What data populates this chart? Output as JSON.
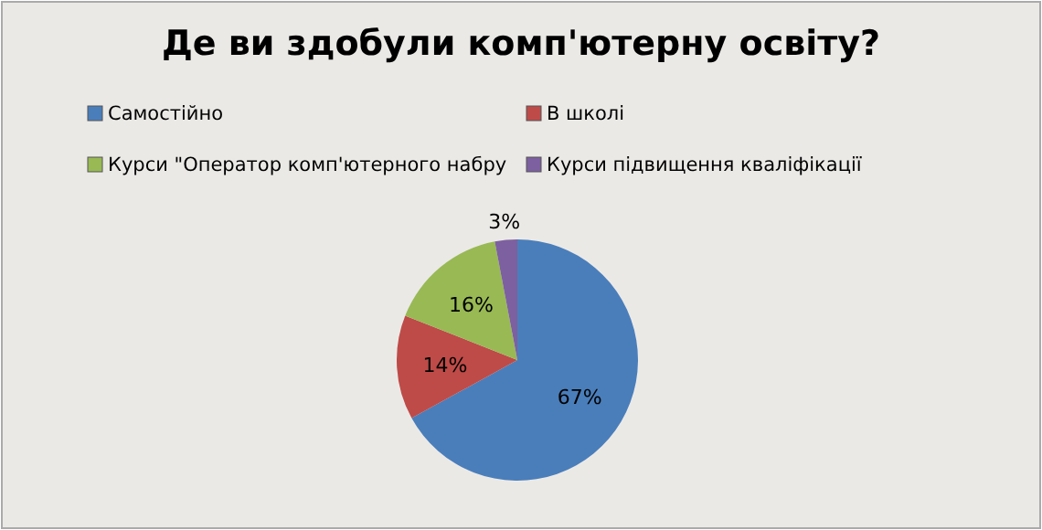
{
  "chart_data": {
    "type": "pie",
    "title": "Де ви здобули комп'ютерну освіту?",
    "categories": [
      "Самостійно",
      "В школі",
      "Курси \"Оператор комп'ютерного набру",
      "Курси підвищення кваліфікації"
    ],
    "values": [
      67,
      14,
      16,
      3
    ],
    "colors": [
      "#4a7ebb",
      "#be4b48",
      "#98b954",
      "#7d60a0"
    ],
    "value_labels": [
      "67%",
      "14%",
      "16%",
      "3%"
    ],
    "legend": "top"
  }
}
